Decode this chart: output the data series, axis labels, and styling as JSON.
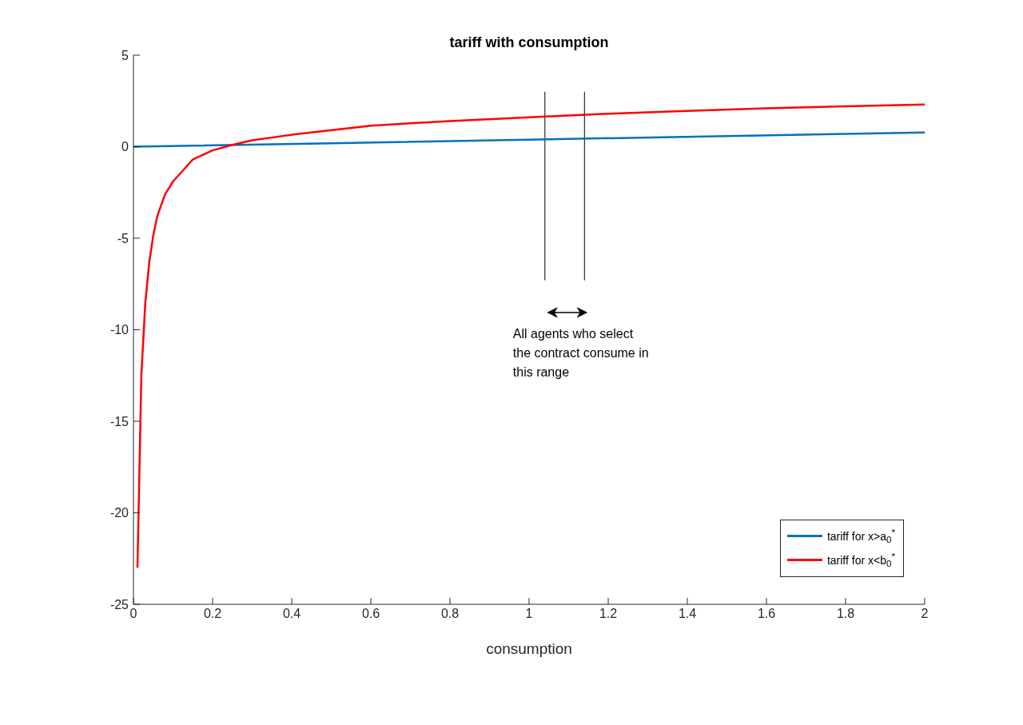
{
  "chart_data": {
    "type": "line",
    "title": "tariff with consumption",
    "xlabel": "consumption",
    "xlim": [
      0,
      2
    ],
    "xticks": [
      0,
      0.2,
      0.4,
      0.6,
      0.8,
      1,
      1.2,
      1.4,
      1.6,
      1.8,
      2
    ],
    "ylim": [
      -25,
      5
    ],
    "yticks": [
      -25,
      -20,
      -15,
      -10,
      -5,
      0,
      5
    ],
    "series": [
      {
        "name": "tariff for x>a$_{0}$$^{*}$",
        "color": "#0072bd",
        "x": [
          0,
          0.5,
          1,
          1.5,
          2
        ],
        "values": [
          0,
          0.19,
          0.385,
          0.58,
          0.77
        ]
      },
      {
        "name": "tariff for x<b$_{0}$$^{*}$",
        "color": "#ff0000",
        "x": [
          0.01,
          0.02,
          0.03,
          0.04,
          0.05,
          0.06,
          0.08,
          0.1,
          0.15,
          0.2,
          0.25,
          0.3,
          0.4,
          0.6,
          0.8,
          1,
          1.2,
          1.4,
          1.6,
          1.8,
          2
        ],
        "values": [
          -23,
          -12.45,
          -8.5,
          -6.3,
          -4.85,
          -3.8,
          -2.6,
          -1.9,
          -0.7,
          -0.2,
          0.1,
          0.35,
          0.65,
          1.15,
          1.4,
          1.6,
          1.8,
          1.95,
          2.1,
          2.2,
          2.3
        ]
      }
    ],
    "ref_lines": [
      {
        "axis": "x",
        "value": 1.04,
        "color": "#000000"
      },
      {
        "axis": "x",
        "value": 1.14,
        "color": "#000000"
      }
    ],
    "annotations": [
      "All agents who select the contract consume in this range"
    ],
    "legend": "bottom right"
  }
}
